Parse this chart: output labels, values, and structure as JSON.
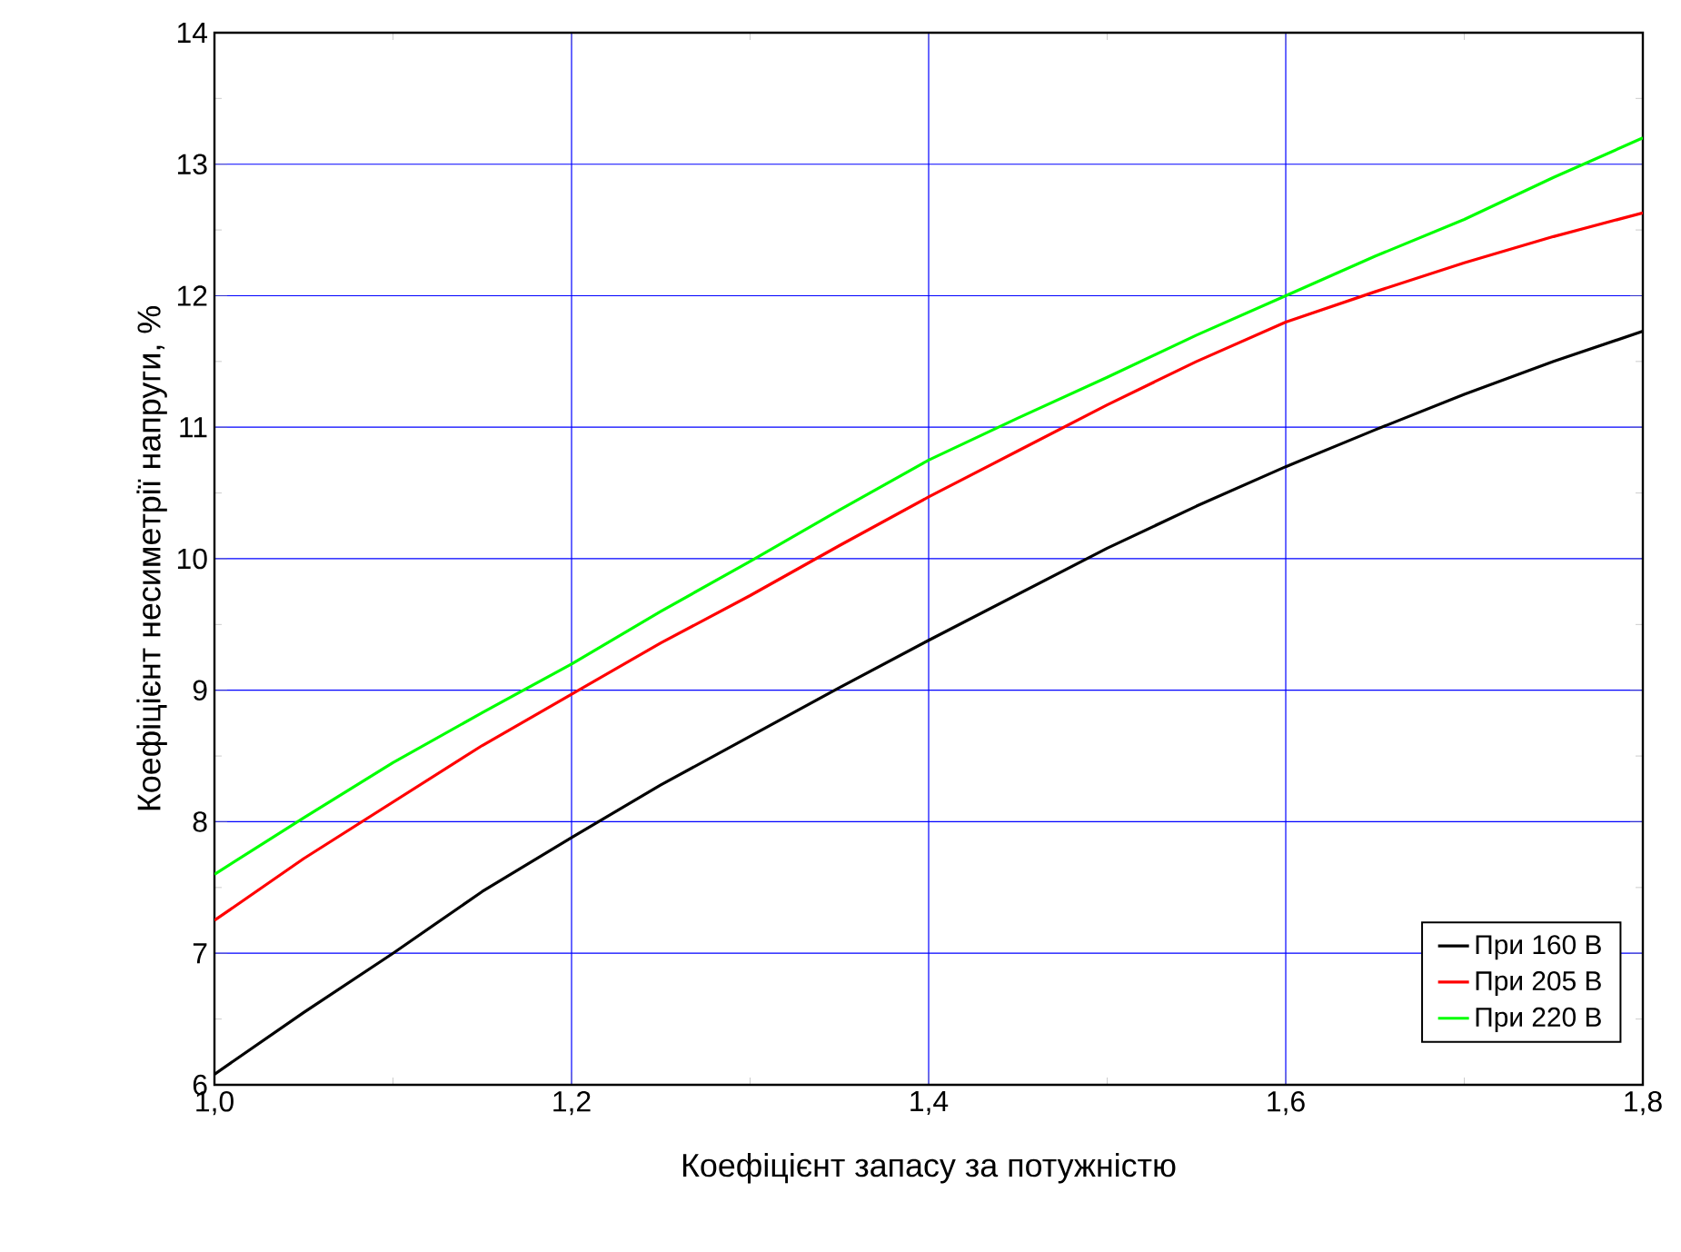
{
  "chart_data": {
    "type": "line",
    "xlabel": "Коефіцієнт запасу за потужністю",
    "ylabel": "Коефіцієнт несиметрії напруги, %",
    "xlim": [
      1.0,
      1.8
    ],
    "ylim": [
      6,
      14
    ],
    "xticks": [
      {
        "value": 1.0,
        "label": "1,0"
      },
      {
        "value": 1.2,
        "label": "1,2"
      },
      {
        "value": 1.4,
        "label": "1,4"
      },
      {
        "value": 1.6,
        "label": "1,6"
      },
      {
        "value": 1.8,
        "label": "1,8"
      }
    ],
    "yticks": [
      6,
      7,
      8,
      9,
      10,
      11,
      12,
      13,
      14
    ],
    "grid": true,
    "legend": "bottom right",
    "marker": "none",
    "line_style": "solid",
    "x": [
      1.0,
      1.05,
      1.1,
      1.15,
      1.2,
      1.25,
      1.3,
      1.35,
      1.4,
      1.45,
      1.5,
      1.55,
      1.6,
      1.65,
      1.7,
      1.75,
      1.8
    ],
    "series": [
      {
        "name": "При 160 В",
        "color": "#000000",
        "values": [
          6.08,
          6.55,
          7.0,
          7.47,
          7.88,
          8.28,
          8.65,
          9.02,
          9.38,
          9.73,
          10.08,
          10.4,
          10.7,
          10.98,
          11.25,
          11.5,
          11.73
        ]
      },
      {
        "name": "При 205 В",
        "color": "#ff0000",
        "values": [
          7.25,
          7.72,
          8.15,
          8.58,
          8.97,
          9.36,
          9.72,
          10.1,
          10.47,
          10.82,
          11.17,
          11.5,
          11.8,
          12.03,
          12.25,
          12.45,
          12.63
        ]
      },
      {
        "name": "При 220 В",
        "color": "#00ff00",
        "values": [
          7.6,
          8.03,
          8.45,
          8.83,
          9.2,
          9.6,
          9.98,
          10.37,
          10.75,
          11.07,
          11.38,
          11.7,
          12.0,
          12.3,
          12.58,
          12.9,
          13.2
        ]
      }
    ]
  }
}
